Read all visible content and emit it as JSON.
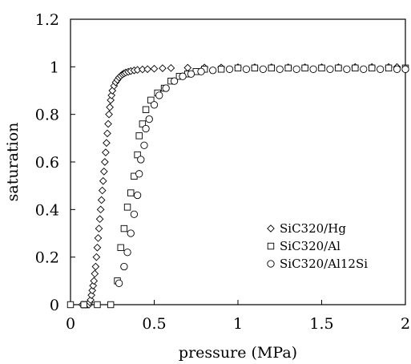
{
  "chart_data": {
    "type": "scatter",
    "xlabel": "pressure (MPa)",
    "ylabel": "saturation",
    "xlim": [
      0,
      2
    ],
    "ylim": [
      0,
      1.2
    ],
    "x_ticks": [
      "0",
      "0.5",
      "1",
      "1.5",
      "2"
    ],
    "y_ticks": [
      "0",
      "0.2",
      "0.4",
      "0.6",
      "0.8",
      "1",
      "1.2"
    ],
    "grid": false,
    "legend_position": "bottom-right",
    "series": [
      {
        "name": "SiC320/Hg",
        "marker": "diamond",
        "points": [
          [
            0.07,
            0.0
          ],
          [
            0.08,
            0.0
          ],
          [
            0.09,
            0.0
          ],
          [
            0.1,
            0.0
          ],
          [
            0.11,
            0.0
          ],
          [
            0.115,
            0.01
          ],
          [
            0.12,
            0.02
          ],
          [
            0.125,
            0.04
          ],
          [
            0.13,
            0.06
          ],
          [
            0.135,
            0.08
          ],
          [
            0.14,
            0.1
          ],
          [
            0.145,
            0.13
          ],
          [
            0.15,
            0.16
          ],
          [
            0.155,
            0.2
          ],
          [
            0.16,
            0.24
          ],
          [
            0.165,
            0.28
          ],
          [
            0.17,
            0.32
          ],
          [
            0.175,
            0.36
          ],
          [
            0.18,
            0.4
          ],
          [
            0.185,
            0.44
          ],
          [
            0.19,
            0.48
          ],
          [
            0.195,
            0.52
          ],
          [
            0.2,
            0.56
          ],
          [
            0.205,
            0.6
          ],
          [
            0.21,
            0.64
          ],
          [
            0.215,
            0.68
          ],
          [
            0.22,
            0.72
          ],
          [
            0.225,
            0.76
          ],
          [
            0.23,
            0.8
          ],
          [
            0.235,
            0.83
          ],
          [
            0.24,
            0.86
          ],
          [
            0.245,
            0.88
          ],
          [
            0.25,
            0.9
          ],
          [
            0.26,
            0.92
          ],
          [
            0.27,
            0.935
          ],
          [
            0.28,
            0.945
          ],
          [
            0.29,
            0.955
          ],
          [
            0.3,
            0.962
          ],
          [
            0.31,
            0.968
          ],
          [
            0.32,
            0.972
          ],
          [
            0.33,
            0.976
          ],
          [
            0.345,
            0.979
          ],
          [
            0.36,
            0.982
          ],
          [
            0.38,
            0.985
          ],
          [
            0.4,
            0.987
          ],
          [
            0.43,
            0.989
          ],
          [
            0.46,
            0.99
          ],
          [
            0.5,
            0.992
          ],
          [
            0.55,
            0.994
          ],
          [
            0.6,
            0.995
          ],
          [
            0.7,
            0.996
          ],
          [
            0.8,
            0.997
          ],
          [
            0.9,
            0.997
          ],
          [
            1.0,
            0.998
          ],
          [
            1.1,
            0.998
          ],
          [
            1.2,
            0.998
          ],
          [
            1.3,
            0.998
          ],
          [
            1.4,
            0.998
          ],
          [
            1.5,
            0.998
          ],
          [
            1.6,
            0.998
          ],
          [
            1.7,
            0.999
          ],
          [
            1.8,
            0.999
          ],
          [
            1.9,
            0.999
          ],
          [
            1.95,
            0.999
          ]
        ]
      },
      {
        "name": "SiC320/Al",
        "marker": "square",
        "points": [
          [
            0.0,
            0.0
          ],
          [
            0.08,
            0.0
          ],
          [
            0.16,
            0.0
          ],
          [
            0.24,
            0.0
          ],
          [
            0.28,
            0.1
          ],
          [
            0.3,
            0.24
          ],
          [
            0.32,
            0.32
          ],
          [
            0.34,
            0.41
          ],
          [
            0.36,
            0.47
          ],
          [
            0.38,
            0.54
          ],
          [
            0.4,
            0.63
          ],
          [
            0.41,
            0.71
          ],
          [
            0.43,
            0.76
          ],
          [
            0.45,
            0.82
          ],
          [
            0.48,
            0.86
          ],
          [
            0.52,
            0.89
          ],
          [
            0.56,
            0.91
          ],
          [
            0.6,
            0.94
          ],
          [
            0.65,
            0.96
          ],
          [
            0.7,
            0.97
          ],
          [
            0.75,
            0.98
          ],
          [
            0.8,
            0.99
          ],
          [
            0.9,
            0.99
          ],
          [
            1.0,
            0.995
          ],
          [
            1.1,
            0.995
          ],
          [
            1.2,
            0.995
          ],
          [
            1.3,
            0.995
          ],
          [
            1.4,
            0.995
          ],
          [
            1.5,
            0.995
          ],
          [
            1.6,
            0.995
          ],
          [
            1.7,
            0.995
          ],
          [
            1.8,
            0.995
          ],
          [
            1.9,
            0.995
          ],
          [
            2.0,
            0.995
          ]
        ]
      },
      {
        "name": "SiC320/Al12Si",
        "marker": "circle",
        "points": [
          [
            0.29,
            0.09
          ],
          [
            0.32,
            0.16
          ],
          [
            0.34,
            0.22
          ],
          [
            0.36,
            0.3
          ],
          [
            0.38,
            0.38
          ],
          [
            0.4,
            0.46
          ],
          [
            0.41,
            0.55
          ],
          [
            0.42,
            0.61
          ],
          [
            0.44,
            0.67
          ],
          [
            0.45,
            0.74
          ],
          [
            0.47,
            0.78
          ],
          [
            0.5,
            0.84
          ],
          [
            0.53,
            0.88
          ],
          [
            0.57,
            0.91
          ],
          [
            0.62,
            0.94
          ],
          [
            0.67,
            0.96
          ],
          [
            0.72,
            0.97
          ],
          [
            0.78,
            0.98
          ],
          [
            0.85,
            0.985
          ],
          [
            0.95,
            0.99
          ],
          [
            1.05,
            0.99
          ],
          [
            1.15,
            0.99
          ],
          [
            1.25,
            0.99
          ],
          [
            1.35,
            0.99
          ],
          [
            1.45,
            0.99
          ],
          [
            1.55,
            0.99
          ],
          [
            1.65,
            0.99
          ],
          [
            1.75,
            0.99
          ],
          [
            1.85,
            0.99
          ],
          [
            1.95,
            0.99
          ],
          [
            2.0,
            0.99
          ]
        ]
      }
    ]
  }
}
